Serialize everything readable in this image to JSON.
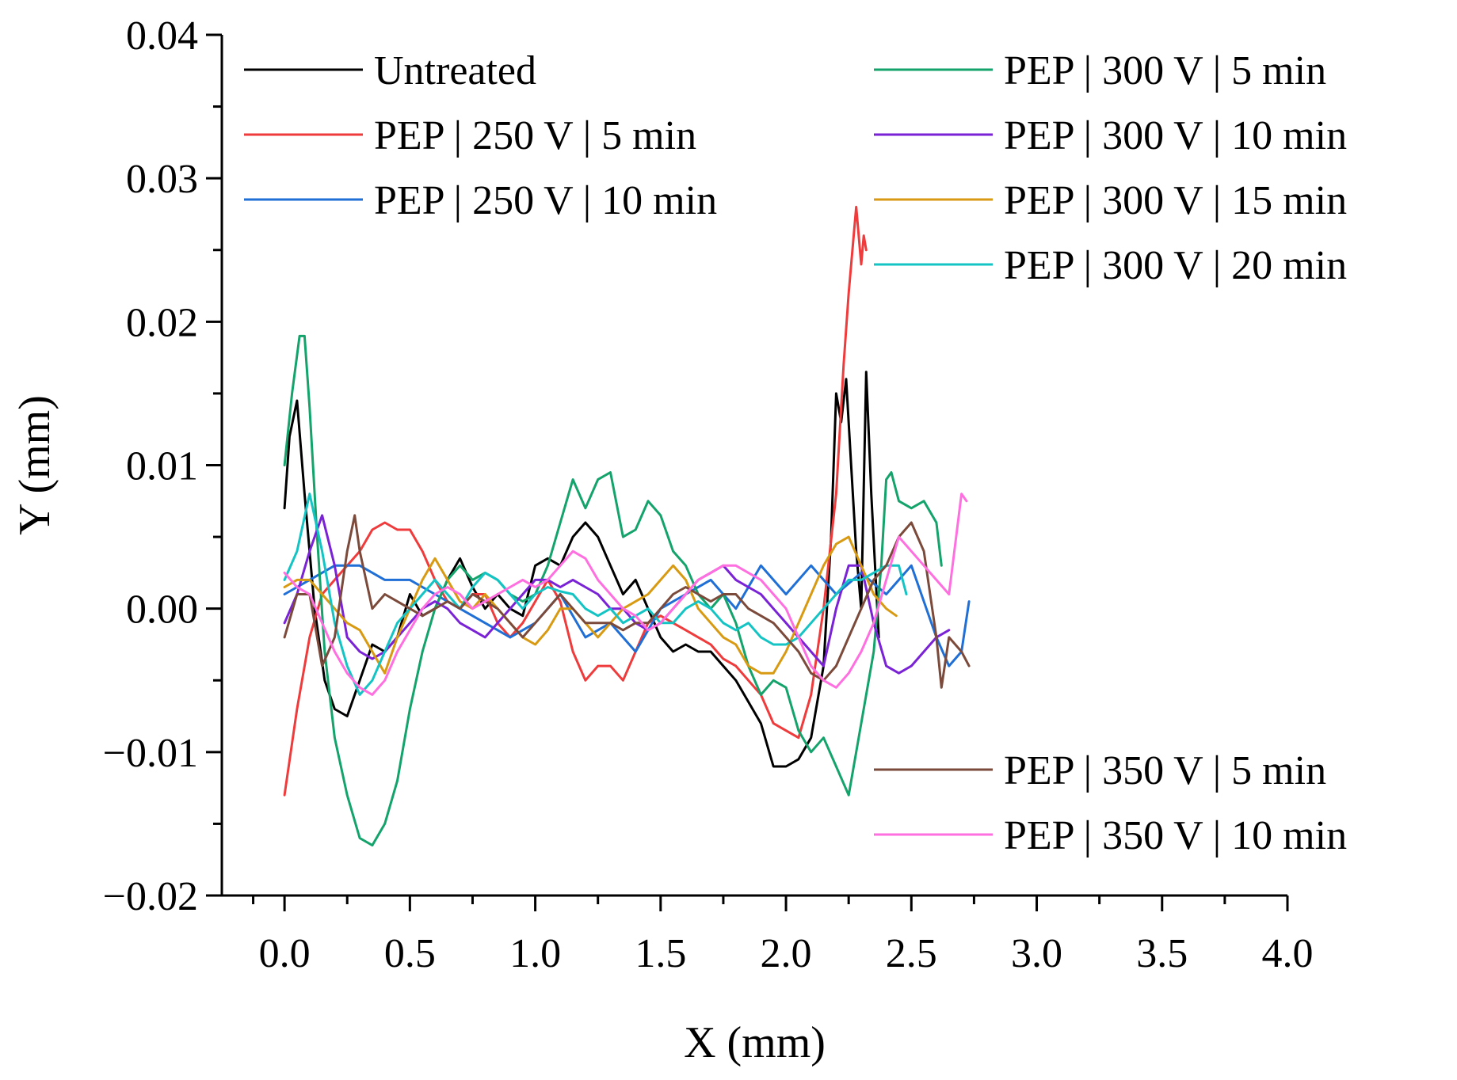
{
  "chart_data": {
    "type": "line",
    "title": "",
    "xlabel": "X (mm)",
    "ylabel": "Y (mm)",
    "xlim": [
      -0.25,
      4.0
    ],
    "ylim": [
      -0.02,
      0.04
    ],
    "xticks": [
      0.0,
      0.5,
      1.0,
      1.5,
      2.0,
      2.5,
      3.0,
      3.5,
      4.0
    ],
    "xtick_labels": [
      "0.0",
      "0.5",
      "1.0",
      "1.5",
      "2.0",
      "2.5",
      "3.0",
      "3.5",
      "4.0"
    ],
    "yticks": [
      -0.02,
      -0.01,
      0.0,
      0.01,
      0.02,
      0.03,
      0.04
    ],
    "ytick_labels": [
      "−0.02",
      "−0.01",
      "0.00",
      "0.01",
      "0.02",
      "0.03",
      "0.04"
    ],
    "grid": false,
    "legend_groups": [
      {
        "position": "top-left",
        "series": [
          0,
          1,
          2
        ]
      },
      {
        "position": "top-right",
        "series": [
          3,
          4,
          5,
          6
        ]
      },
      {
        "position": "bottom-right",
        "series": [
          7,
          8
        ]
      }
    ],
    "series": [
      {
        "name": "Untreated",
        "color": "#000000",
        "x": [
          0.0,
          0.02,
          0.05,
          0.08,
          0.12,
          0.16,
          0.2,
          0.25,
          0.3,
          0.35,
          0.4,
          0.45,
          0.5,
          0.55,
          0.6,
          0.65,
          0.7,
          0.75,
          0.8,
          0.85,
          0.9,
          0.95,
          1.0,
          1.05,
          1.1,
          1.15,
          1.2,
          1.25,
          1.3,
          1.35,
          1.4,
          1.45,
          1.5,
          1.55,
          1.6,
          1.65,
          1.7,
          1.75,
          1.8,
          1.85,
          1.9,
          1.95,
          2.0,
          2.05,
          2.1,
          2.15,
          2.18,
          2.2,
          2.22,
          2.24,
          2.26,
          2.28,
          2.3,
          2.32,
          2.34,
          2.37
        ],
        "y": [
          0.007,
          0.012,
          0.0145,
          0.008,
          0.0,
          -0.005,
          -0.007,
          -0.0075,
          -0.005,
          -0.0025,
          -0.003,
          -0.002,
          0.001,
          -0.0005,
          0.0,
          0.002,
          0.0035,
          0.0015,
          0.0,
          0.001,
          0.0,
          -0.0005,
          0.003,
          0.0035,
          0.003,
          0.005,
          0.006,
          0.005,
          0.003,
          0.001,
          0.002,
          0.0,
          -0.002,
          -0.003,
          -0.0025,
          -0.003,
          -0.003,
          -0.004,
          -0.005,
          -0.0065,
          -0.008,
          -0.011,
          -0.011,
          -0.0105,
          -0.009,
          -0.004,
          0.005,
          0.015,
          0.013,
          0.016,
          0.01,
          0.004,
          0.0,
          0.0165,
          0.008,
          -0.002
        ]
      },
      {
        "name": "PEP | 250 V | 5 min",
        "color": "#ef3b3b",
        "x": [
          0.0,
          0.05,
          0.1,
          0.15,
          0.2,
          0.25,
          0.3,
          0.35,
          0.4,
          0.45,
          0.5,
          0.55,
          0.6,
          0.65,
          0.7,
          0.75,
          0.8,
          0.85,
          0.9,
          0.95,
          1.0,
          1.05,
          1.1,
          1.15,
          1.2,
          1.25,
          1.3,
          1.35,
          1.4,
          1.45,
          1.5,
          1.55,
          1.6,
          1.65,
          1.7,
          1.75,
          1.8,
          1.85,
          1.9,
          1.95,
          2.0,
          2.05,
          2.1,
          2.15,
          2.2,
          2.23,
          2.25,
          2.27,
          2.28,
          2.3,
          2.31,
          2.32
        ],
        "y": [
          -0.013,
          -0.007,
          -0.002,
          0.001,
          0.002,
          0.003,
          0.004,
          0.0055,
          0.006,
          0.0055,
          0.0055,
          0.004,
          0.002,
          0.0005,
          0.0,
          0.001,
          0.001,
          -0.001,
          -0.002,
          -0.001,
          0.0005,
          0.002,
          0.0005,
          -0.003,
          -0.005,
          -0.004,
          -0.004,
          -0.005,
          -0.003,
          -0.001,
          -0.0005,
          -0.001,
          -0.0015,
          -0.002,
          -0.0025,
          -0.0035,
          -0.004,
          -0.005,
          -0.006,
          -0.008,
          -0.0085,
          -0.009,
          -0.006,
          0.0,
          0.008,
          0.017,
          0.022,
          0.026,
          0.028,
          0.024,
          0.026,
          0.025
        ]
      },
      {
        "name": "PEP | 250 V | 10 min",
        "color": "#1f6fd6",
        "x": [
          0.0,
          0.1,
          0.2,
          0.3,
          0.4,
          0.5,
          0.6,
          0.7,
          0.8,
          0.9,
          1.0,
          1.1,
          1.2,
          1.3,
          1.4,
          1.5,
          1.6,
          1.7,
          1.8,
          1.9,
          2.0,
          2.1,
          2.2,
          2.3,
          2.4,
          2.5,
          2.6,
          2.65,
          2.7,
          2.73
        ],
        "y": [
          0.001,
          0.002,
          0.003,
          0.003,
          0.002,
          0.002,
          0.001,
          0.0,
          -0.001,
          -0.002,
          -0.001,
          0.001,
          -0.002,
          -0.001,
          -0.003,
          0.0,
          0.001,
          0.002,
          0.0,
          0.003,
          0.001,
          0.003,
          0.001,
          0.0025,
          0.001,
          0.003,
          -0.002,
          -0.004,
          -0.003,
          0.0005
        ]
      },
      {
        "name": "PEP | 300 V | 5 min",
        "color": "#13a36b",
        "x": [
          0.0,
          0.03,
          0.06,
          0.08,
          0.1,
          0.13,
          0.16,
          0.2,
          0.25,
          0.3,
          0.35,
          0.4,
          0.45,
          0.5,
          0.55,
          0.6,
          0.65,
          0.7,
          0.75,
          0.8,
          0.85,
          0.9,
          0.95,
          1.0,
          1.05,
          1.1,
          1.15,
          1.2,
          1.25,
          1.3,
          1.35,
          1.4,
          1.45,
          1.5,
          1.55,
          1.6,
          1.65,
          1.7,
          1.75,
          1.8,
          1.85,
          1.9,
          1.95,
          2.0,
          2.05,
          2.1,
          2.15,
          2.2,
          2.25,
          2.3,
          2.35,
          2.38,
          2.4,
          2.42,
          2.45,
          2.5,
          2.55,
          2.6,
          2.62
        ],
        "y": [
          0.01,
          0.015,
          0.019,
          0.019,
          0.014,
          0.005,
          -0.003,
          -0.009,
          -0.013,
          -0.016,
          -0.0165,
          -0.015,
          -0.012,
          -0.007,
          -0.003,
          0.0,
          0.002,
          0.003,
          0.002,
          0.0025,
          0.002,
          0.001,
          0.0005,
          0.001,
          0.003,
          0.006,
          0.009,
          0.007,
          0.009,
          0.0095,
          0.005,
          0.0055,
          0.0075,
          0.0065,
          0.004,
          0.003,
          0.001,
          0.0,
          0.001,
          -0.001,
          -0.004,
          -0.006,
          -0.005,
          -0.0055,
          -0.0085,
          -0.01,
          -0.009,
          -0.011,
          -0.013,
          -0.008,
          -0.003,
          0.003,
          0.009,
          0.0095,
          0.0075,
          0.007,
          0.0075,
          0.006,
          0.003
        ]
      },
      {
        "name": "PEP | 300 V | 10 min",
        "color": "#7a22d6",
        "x": [
          0.0,
          0.05,
          0.1,
          0.15,
          0.2,
          0.25,
          0.3,
          0.35,
          0.4,
          0.45,
          0.5,
          0.55,
          0.6,
          0.65,
          0.7,
          0.75,
          0.8,
          0.85,
          0.9,
          0.95,
          1.0,
          1.05,
          1.1,
          1.15,
          1.2,
          1.25,
          1.3,
          1.35,
          1.4,
          1.45,
          1.5,
          1.55,
          1.6,
          1.65,
          1.7,
          1.75,
          1.8,
          1.85,
          1.9,
          1.95,
          2.0,
          2.05,
          2.1,
          2.15,
          2.2,
          2.25,
          2.3,
          2.35,
          2.4,
          2.45,
          2.5,
          2.55,
          2.6,
          2.65
        ],
        "y": [
          -0.001,
          0.001,
          0.004,
          0.0065,
          0.003,
          -0.002,
          -0.003,
          -0.0035,
          -0.003,
          -0.002,
          -0.001,
          0.0,
          0.0005,
          0.0,
          -0.001,
          -0.0015,
          -0.002,
          -0.001,
          0.0,
          0.001,
          0.002,
          0.002,
          0.0015,
          0.002,
          0.0015,
          0.001,
          0.0,
          0.0,
          -0.001,
          -0.0015,
          -0.001,
          0.0,
          0.001,
          0.002,
          0.0025,
          0.003,
          0.002,
          0.0015,
          0.001,
          0.0,
          -0.001,
          -0.002,
          -0.003,
          -0.004,
          0.0,
          0.003,
          0.003,
          -0.001,
          -0.004,
          -0.0045,
          -0.004,
          -0.003,
          -0.002,
          -0.0015
        ]
      },
      {
        "name": "PEP | 300 V | 15 min",
        "color": "#d89a12",
        "x": [
          0.0,
          0.05,
          0.1,
          0.15,
          0.2,
          0.25,
          0.3,
          0.35,
          0.4,
          0.45,
          0.5,
          0.55,
          0.6,
          0.65,
          0.7,
          0.75,
          0.8,
          0.85,
          0.9,
          0.95,
          1.0,
          1.05,
          1.1,
          1.15,
          1.2,
          1.25,
          1.3,
          1.35,
          1.4,
          1.45,
          1.5,
          1.55,
          1.6,
          1.65,
          1.7,
          1.75,
          1.8,
          1.85,
          1.9,
          1.95,
          2.0,
          2.05,
          2.1,
          2.15,
          2.2,
          2.25,
          2.3,
          2.35,
          2.4,
          2.44
        ],
        "y": [
          0.0015,
          0.002,
          0.002,
          0.001,
          0.0,
          -0.001,
          -0.0015,
          -0.003,
          -0.0045,
          -0.002,
          0.0,
          0.002,
          0.0035,
          0.002,
          0.0005,
          0.0,
          0.001,
          0.0,
          -0.001,
          -0.002,
          -0.0025,
          -0.0015,
          0.0,
          0.0,
          -0.001,
          -0.002,
          -0.001,
          0.0,
          0.0005,
          0.001,
          0.002,
          0.003,
          0.002,
          0.0,
          -0.001,
          -0.002,
          -0.0025,
          -0.004,
          -0.0045,
          -0.0045,
          -0.003,
          -0.001,
          0.001,
          0.003,
          0.0045,
          0.005,
          0.003,
          0.001,
          0.0,
          -0.0005
        ]
      },
      {
        "name": "PEP | 300 V | 20 min",
        "color": "#14c4c4",
        "x": [
          0.0,
          0.05,
          0.1,
          0.15,
          0.2,
          0.25,
          0.3,
          0.35,
          0.4,
          0.45,
          0.5,
          0.55,
          0.6,
          0.65,
          0.7,
          0.75,
          0.8,
          0.85,
          0.9,
          0.95,
          1.0,
          1.05,
          1.1,
          1.15,
          1.2,
          1.25,
          1.3,
          1.35,
          1.4,
          1.45,
          1.5,
          1.55,
          1.6,
          1.65,
          1.7,
          1.75,
          1.8,
          1.85,
          1.9,
          1.95,
          2.0,
          2.05,
          2.1,
          2.15,
          2.2,
          2.25,
          2.3,
          2.35,
          2.4,
          2.45,
          2.48
        ],
        "y": [
          0.002,
          0.004,
          0.008,
          0.004,
          -0.001,
          -0.004,
          -0.006,
          -0.005,
          -0.003,
          -0.001,
          0.0,
          0.001,
          0.002,
          0.001,
          0.0,
          0.0015,
          0.0025,
          0.002,
          0.001,
          0.0,
          0.001,
          0.0015,
          0.0012,
          0.001,
          0.0,
          -0.0005,
          0.0,
          -0.001,
          -0.0005,
          0.0,
          -0.001,
          -0.001,
          0.0,
          0.0005,
          0.0,
          -0.001,
          -0.0015,
          -0.001,
          -0.002,
          -0.0025,
          -0.0025,
          -0.002,
          -0.001,
          0.0,
          0.001,
          0.002,
          0.002,
          0.0025,
          0.003,
          0.003,
          0.001
        ]
      },
      {
        "name": "PEP | 350 V | 5 min",
        "color": "#7b4a3a",
        "x": [
          0.0,
          0.05,
          0.1,
          0.15,
          0.2,
          0.25,
          0.28,
          0.3,
          0.35,
          0.4,
          0.45,
          0.5,
          0.55,
          0.6,
          0.65,
          0.7,
          0.75,
          0.8,
          0.85,
          0.9,
          0.95,
          1.0,
          1.05,
          1.1,
          1.15,
          1.2,
          1.25,
          1.3,
          1.35,
          1.4,
          1.45,
          1.5,
          1.55,
          1.6,
          1.65,
          1.7,
          1.75,
          1.8,
          1.85,
          1.9,
          1.95,
          2.0,
          2.05,
          2.1,
          2.15,
          2.2,
          2.25,
          2.3,
          2.35,
          2.4,
          2.45,
          2.5,
          2.55,
          2.6,
          2.62,
          2.65,
          2.7,
          2.73
        ],
        "y": [
          -0.002,
          0.001,
          0.001,
          -0.004,
          -0.002,
          0.004,
          0.0065,
          0.004,
          0.0,
          0.001,
          0.0005,
          0.0,
          -0.0005,
          0.0,
          0.0005,
          0.0,
          0.001,
          0.0005,
          0.0,
          -0.001,
          -0.002,
          -0.001,
          0.0,
          0.001,
          0.0,
          -0.001,
          -0.001,
          -0.001,
          -0.0015,
          -0.001,
          -0.001,
          0.0,
          0.001,
          0.0015,
          0.001,
          0.0005,
          0.001,
          0.001,
          0.0,
          -0.0005,
          -0.001,
          -0.002,
          -0.003,
          -0.0045,
          -0.005,
          -0.004,
          -0.002,
          0.0,
          0.002,
          0.003,
          0.005,
          0.006,
          0.004,
          -0.002,
          -0.0055,
          -0.002,
          -0.003,
          -0.004
        ]
      },
      {
        "name": "PEP | 350 V | 10 min",
        "color": "#ff6fe0",
        "x": [
          0.0,
          0.05,
          0.1,
          0.15,
          0.2,
          0.25,
          0.3,
          0.35,
          0.4,
          0.45,
          0.5,
          0.55,
          0.6,
          0.65,
          0.7,
          0.75,
          0.8,
          0.85,
          0.9,
          0.95,
          1.0,
          1.05,
          1.1,
          1.15,
          1.2,
          1.25,
          1.3,
          1.35,
          1.4,
          1.45,
          1.5,
          1.55,
          1.6,
          1.65,
          1.7,
          1.75,
          1.8,
          1.85,
          1.9,
          1.95,
          2.0,
          2.05,
          2.1,
          2.15,
          2.2,
          2.25,
          2.3,
          2.35,
          2.4,
          2.45,
          2.5,
          2.55,
          2.6,
          2.65,
          2.7,
          2.72
        ],
        "y": [
          0.0025,
          0.0015,
          0.001,
          -0.001,
          -0.003,
          -0.0045,
          -0.0055,
          -0.006,
          -0.005,
          -0.003,
          -0.0015,
          0.0,
          0.001,
          0.0015,
          0.001,
          0.0,
          0.0005,
          0.001,
          0.0015,
          0.002,
          0.0015,
          0.002,
          0.003,
          0.004,
          0.0035,
          0.002,
          0.001,
          0.0,
          -0.0005,
          -0.0015,
          -0.001,
          0.0,
          0.001,
          0.002,
          0.0025,
          0.003,
          0.003,
          0.0025,
          0.002,
          0.001,
          0.0,
          -0.002,
          -0.004,
          -0.005,
          -0.0055,
          -0.0045,
          -0.003,
          -0.001,
          0.002,
          0.005,
          0.004,
          0.003,
          0.002,
          0.001,
          0.008,
          0.0075
        ]
      }
    ]
  }
}
